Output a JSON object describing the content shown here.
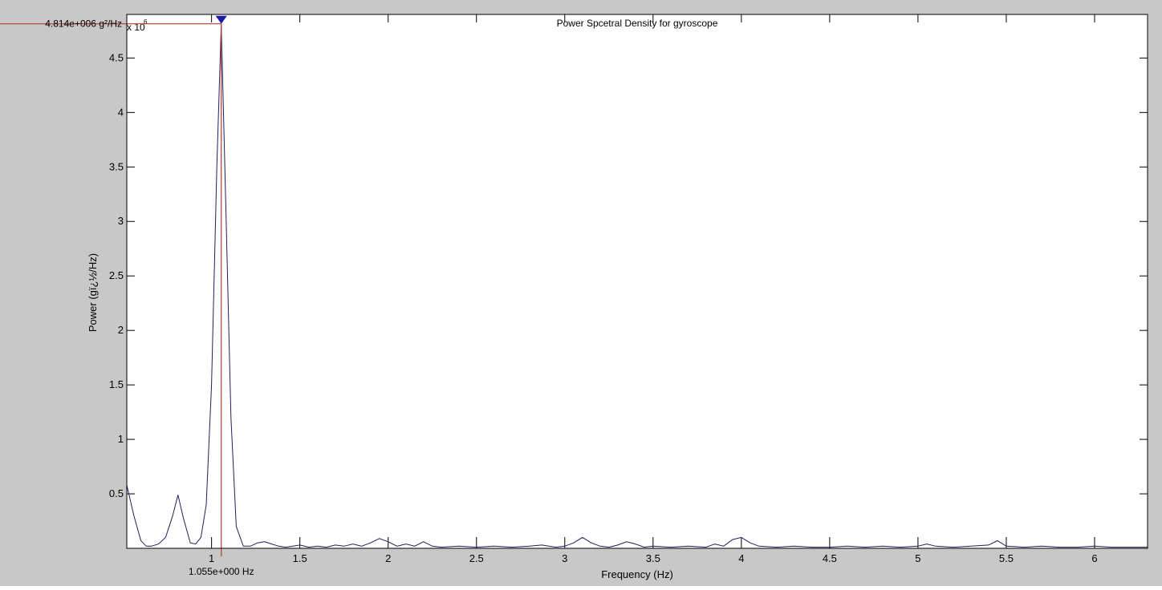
{
  "chart_data": {
    "type": "line",
    "title": "Power Spcetral Density for gyroscope",
    "xlabel": "Frequency (Hz)",
    "ylabel": "Power (gï¿½/Hz)",
    "y_exponent_label": "x 10",
    "y_exponent_power": "6",
    "xlim": [
      0.52,
      6.3
    ],
    "ylim": [
      0,
      4.9
    ],
    "x_ticks": [
      1,
      1.5,
      2,
      2.5,
      3,
      3.5,
      4,
      4.5,
      5,
      5.5,
      6
    ],
    "x_tick_labels": [
      "1",
      "1.5",
      "2",
      "2.5",
      "3",
      "3.5",
      "4",
      "4.5",
      "5",
      "5.5",
      "6"
    ],
    "y_ticks": [
      0.5,
      1,
      1.5,
      2,
      2.5,
      3,
      3.5,
      4,
      4.5
    ],
    "y_tick_labels": [
      "0.5",
      "1",
      "1.5",
      "2",
      "2.5",
      "3",
      "3.5",
      "4",
      "4.5"
    ],
    "grid": false,
    "colors": {
      "figure_bg": "#c8c8c8",
      "axes_bg": "#ffffff",
      "line": "#1f1f5c",
      "marker_line": "#c0392b",
      "marker": "#1a1aa8"
    },
    "marker": {
      "x": 1.055,
      "y": 4.814,
      "x_label": "1.055e+000 Hz",
      "y_label": "4.814e+006 g²/Hz"
    },
    "series": [
      {
        "x": [
          0.52,
          0.56,
          0.6,
          0.63,
          0.66,
          0.7,
          0.74,
          0.78,
          0.81,
          0.84,
          0.88,
          0.91,
          0.94,
          0.97,
          1.0,
          1.03,
          1.055,
          1.08,
          1.11,
          1.14,
          1.18,
          1.22,
          1.26,
          1.3,
          1.34,
          1.38,
          1.42,
          1.46,
          1.5,
          1.55,
          1.6,
          1.65,
          1.7,
          1.75,
          1.8,
          1.85,
          1.9,
          1.95,
          2.0,
          2.05,
          2.1,
          2.15,
          2.2,
          2.25,
          2.3,
          2.4,
          2.5,
          2.6,
          2.7,
          2.8,
          2.87,
          2.95,
          3.0,
          3.05,
          3.1,
          3.15,
          3.2,
          3.25,
          3.3,
          3.35,
          3.4,
          3.45,
          3.5,
          3.6,
          3.7,
          3.8,
          3.85,
          3.9,
          3.95,
          4.0,
          4.05,
          4.1,
          4.2,
          4.3,
          4.4,
          4.5,
          4.6,
          4.7,
          4.8,
          4.9,
          5.0,
          5.05,
          5.1,
          5.2,
          5.3,
          5.4,
          5.45,
          5.5,
          5.6,
          5.7,
          5.8,
          5.9,
          6.0,
          6.1,
          6.2,
          6.3
        ],
        "values": [
          0.58,
          0.3,
          0.07,
          0.02,
          0.02,
          0.04,
          0.1,
          0.3,
          0.49,
          0.28,
          0.05,
          0.04,
          0.1,
          0.4,
          1.5,
          3.5,
          4.814,
          3.2,
          1.2,
          0.2,
          0.02,
          0.02,
          0.05,
          0.06,
          0.04,
          0.02,
          0.01,
          0.02,
          0.03,
          0.01,
          0.02,
          0.01,
          0.03,
          0.02,
          0.04,
          0.02,
          0.05,
          0.09,
          0.06,
          0.02,
          0.04,
          0.02,
          0.06,
          0.02,
          0.01,
          0.02,
          0.01,
          0.02,
          0.01,
          0.02,
          0.03,
          0.01,
          0.02,
          0.05,
          0.1,
          0.05,
          0.02,
          0.01,
          0.03,
          0.06,
          0.04,
          0.01,
          0.02,
          0.01,
          0.02,
          0.01,
          0.04,
          0.02,
          0.08,
          0.1,
          0.05,
          0.02,
          0.01,
          0.02,
          0.01,
          0.01,
          0.02,
          0.01,
          0.02,
          0.01,
          0.02,
          0.04,
          0.02,
          0.01,
          0.02,
          0.03,
          0.07,
          0.02,
          0.01,
          0.02,
          0.01,
          0.01,
          0.02,
          0.01,
          0.01,
          0.01
        ]
      }
    ]
  }
}
